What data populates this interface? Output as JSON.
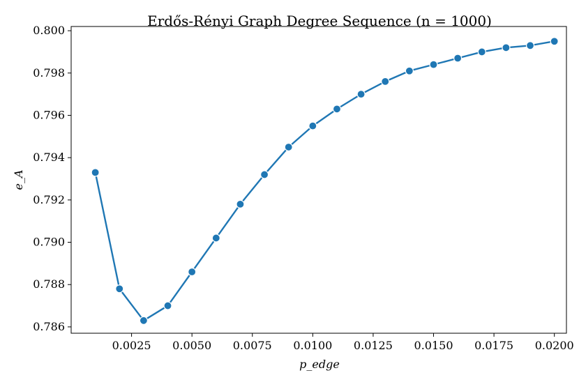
{
  "chart_data": {
    "type": "line",
    "title": "Erdős-Rényi Graph Degree Sequence (n = 1000)",
    "xlabel": "p_edge",
    "ylabel": "e_A",
    "xlim": [
      0.0,
      0.0205
    ],
    "ylim": [
      0.7857,
      0.8002
    ],
    "x_ticks": [
      "0.0025",
      "0.0050",
      "0.0075",
      "0.0100",
      "0.0125",
      "0.0150",
      "0.0175",
      "0.0200"
    ],
    "y_ticks": [
      "0.786",
      "0.788",
      "0.790",
      "0.792",
      "0.794",
      "0.796",
      "0.798",
      "0.800"
    ],
    "grid": false,
    "marker": "circle",
    "series_color": "#1f77b4",
    "series": [
      {
        "x": [
          0.001,
          0.002,
          0.003,
          0.004,
          0.005,
          0.006,
          0.007,
          0.008,
          0.009,
          0.01,
          0.011,
          0.012,
          0.013,
          0.014,
          0.015,
          0.016,
          0.017,
          0.018,
          0.019,
          0.02
        ],
        "y": [
          0.7933,
          0.7878,
          0.7863,
          0.787,
          0.7886,
          0.7902,
          0.7918,
          0.7932,
          0.7945,
          0.7955,
          0.7963,
          0.797,
          0.7976,
          0.7981,
          0.7984,
          0.7987,
          0.799,
          0.7992,
          0.7993,
          0.7995
        ]
      }
    ]
  }
}
